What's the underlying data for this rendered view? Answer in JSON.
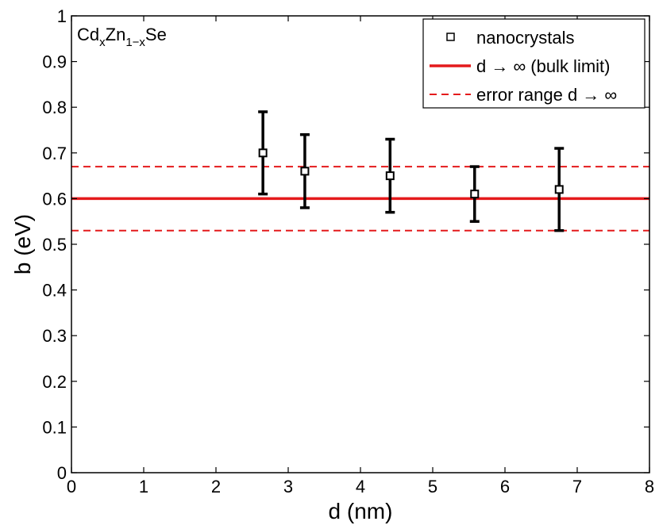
{
  "chart_data": {
    "type": "scatter",
    "title": "",
    "xlabel": "d (nm)",
    "ylabel": "b (eV)",
    "xlim": [
      0,
      8
    ],
    "ylim": [
      0,
      1
    ],
    "xticks": [
      0,
      1,
      2,
      3,
      4,
      5,
      6,
      7,
      8
    ],
    "xtick_labels": [
      "0",
      "1",
      "2",
      "3",
      "4",
      "5",
      "6",
      "7",
      "8"
    ],
    "yticks": [
      0,
      0.1,
      0.2,
      0.3,
      0.4,
      0.5,
      0.6,
      0.7,
      0.8,
      0.9,
      1
    ],
    "ytick_labels": [
      "0",
      "0.1",
      "0.2",
      "0.3",
      "0.4",
      "0.5",
      "0.6",
      "0.7",
      "0.8",
      "0.9",
      "1"
    ],
    "grid": false,
    "legend_position": "top-right",
    "annotation": {
      "parts": [
        "Cd",
        "x",
        "Zn",
        "1−x",
        "Se"
      ]
    },
    "series": [
      {
        "name": "nanocrystals",
        "kind": "points-with-errorbars",
        "color": "#000000",
        "points": [
          {
            "x": 2.65,
            "y": 0.7,
            "ylow": 0.61,
            "yhigh": 0.79
          },
          {
            "x": 3.23,
            "y": 0.66,
            "ylow": 0.58,
            "yhigh": 0.74
          },
          {
            "x": 4.41,
            "y": 0.65,
            "ylow": 0.57,
            "yhigh": 0.73
          },
          {
            "x": 5.58,
            "y": 0.61,
            "ylow": 0.55,
            "yhigh": 0.67
          },
          {
            "x": 6.75,
            "y": 0.62,
            "ylow": 0.53,
            "yhigh": 0.71
          }
        ]
      },
      {
        "name": "d → ∞ (bulk limit)",
        "kind": "hline",
        "color": "#e41a1c",
        "y": 0.6
      },
      {
        "name": "error range d → ∞",
        "kind": "hline-dashed",
        "color": "#e41a1c",
        "y_values": [
          0.53,
          0.67
        ]
      }
    ]
  }
}
